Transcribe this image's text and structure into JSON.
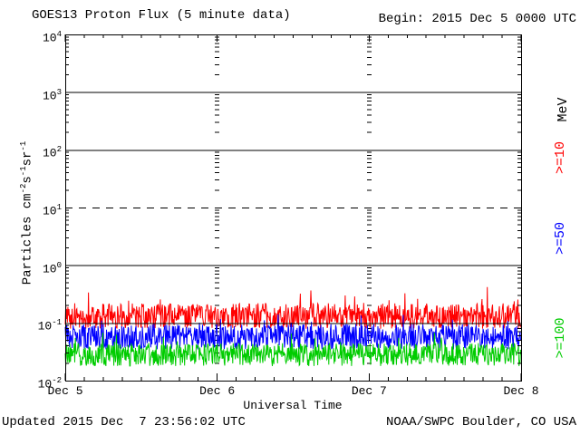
{
  "header": {
    "title": "GOES13 Proton Flux (5 minute data)",
    "begin": "Begin: 2015 Dec 5 0000 UTC"
  },
  "footer": {
    "updated": "Updated 2015 Dec  7 23:56:02 UTC",
    "source": "NOAA/SWPC Boulder, CO USA"
  },
  "chart_data": {
    "type": "line",
    "title": "GOES13 Proton Flux (5 minute data)",
    "subtitle": "Begin: 2015 Dec 5 0000 UTC",
    "xlabel": "Universal Time",
    "ylabel": "Particles cm^-2 s^-1 sr^-1",
    "ylabel_segments": [
      [
        "t",
        "Particles cm"
      ],
      [
        "sup",
        "-2"
      ],
      [
        "t",
        "s"
      ],
      [
        "sup",
        "-1"
      ],
      [
        "t",
        "sr"
      ],
      [
        "sup",
        "-1"
      ]
    ],
    "units_label": "MeV",
    "x_tick_labels": [
      "Dec 5",
      "Dec 6",
      "Dec 7",
      "Dec 8"
    ],
    "x_range_days": 3,
    "samples_per_day": 288,
    "y_axis": {
      "scale": "log",
      "min_exp": -2,
      "max_exp": 4,
      "tick_exponents": [
        4,
        3,
        2,
        1,
        0,
        -1,
        -2
      ]
    },
    "gridlines": {
      "solid_exponents": [
        3,
        2,
        0,
        -1
      ],
      "dashed_exponents": [
        1
      ],
      "day_column_positions": [
        1,
        2
      ]
    },
    "legend": [
      {
        "label": ">=10",
        "color": "#ff0000"
      },
      {
        "label": ">=50",
        "color": "#0000ff"
      },
      {
        "label": ">=100",
        "color": "#00cc00"
      }
    ],
    "series": [
      {
        "name": "Protons >=10 MeV",
        "color": "#ff0000",
        "log10_mid": -0.88,
        "log10_amp": 0.22,
        "spike_prob": 0.05,
        "spike_amp": 0.33,
        "floor_log10": -1.12,
        "approx_range": [
          0.08,
          0.45
        ]
      },
      {
        "name": "Protons >=50 MeV",
        "color": "#0000ff",
        "log10_mid": -1.24,
        "log10_amp": 0.22,
        "spike_prob": 0.05,
        "spike_amp": 0.24,
        "floor_log10": -1.5,
        "approx_range": [
          0.032,
          0.17
        ]
      },
      {
        "name": "Protons >=100 MeV",
        "color": "#00cc00",
        "log10_mid": -1.55,
        "log10_amp": 0.2,
        "spike_prob": 0.05,
        "spike_amp": 0.22,
        "floor_log10": -1.75,
        "approx_range": [
          0.018,
          0.08
        ]
      }
    ],
    "noise_seed": 20151205
  }
}
